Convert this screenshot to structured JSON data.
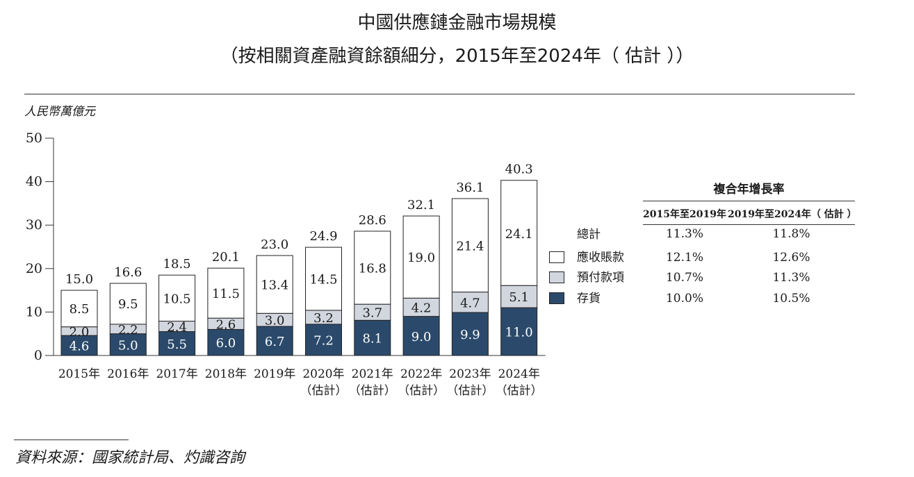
{
  "title_line1": "中國供應鏈金融市場規模",
  "title_line2": "（按相關資產融資餘額細分，2015年至2024年（ 估計 ））",
  "unit_label": "人民幣萬億元",
  "source": "資料來源：國家統計局、灼識咨詢",
  "colors": {
    "inventory": "#2b4a6b",
    "prepayment": "#d2d6df",
    "receivable": "#ffffff",
    "outline": "#222222"
  },
  "chart_data": {
    "type": "bar",
    "stacked": true,
    "categories": [
      [
        "2015年"
      ],
      [
        "2016年"
      ],
      [
        "2017年"
      ],
      [
        "2018年"
      ],
      [
        "2019年"
      ],
      [
        "2020年",
        "（估計）"
      ],
      [
        "2021年",
        "（估計）"
      ],
      [
        "2022年",
        "（估計）"
      ],
      [
        "2023年",
        "（估計）"
      ],
      [
        "2024年",
        "（估計）"
      ]
    ],
    "series": [
      {
        "name": "存貨",
        "values": [
          4.6,
          5.0,
          5.5,
          6.0,
          6.7,
          7.2,
          8.1,
          9.0,
          9.9,
          11.0
        ]
      },
      {
        "name": "預付款項",
        "values": [
          2.0,
          2.2,
          2.4,
          2.6,
          3.0,
          3.2,
          3.7,
          4.2,
          4.7,
          5.1
        ]
      },
      {
        "name": "應收賬款",
        "values": [
          8.5,
          9.5,
          10.5,
          11.5,
          13.4,
          14.5,
          16.8,
          19.0,
          21.4,
          24.1
        ]
      }
    ],
    "totals": [
      15.0,
      16.6,
      18.5,
      20.1,
      23.0,
      24.9,
      28.6,
      32.1,
      36.1,
      40.3
    ],
    "yticks": [
      0,
      10,
      20,
      30,
      40,
      50
    ],
    "ylim": [
      0,
      50
    ]
  },
  "legend": {
    "total_label": "總計",
    "items": [
      {
        "label": "應收賬款",
        "color_key": "receivable"
      },
      {
        "label": "預付款項",
        "color_key": "prepayment"
      },
      {
        "label": "存貨",
        "color_key": "inventory"
      }
    ]
  },
  "cagr": {
    "title": "複合年增長率",
    "columns": [
      "2015年至2019年",
      "2019年至2024年（ 估計 ）"
    ],
    "rows": [
      [
        "11.3%",
        "11.8%"
      ],
      [
        "12.1%",
        "12.6%"
      ],
      [
        "10.7%",
        "11.3%"
      ],
      [
        "10.0%",
        "10.5%"
      ]
    ]
  }
}
